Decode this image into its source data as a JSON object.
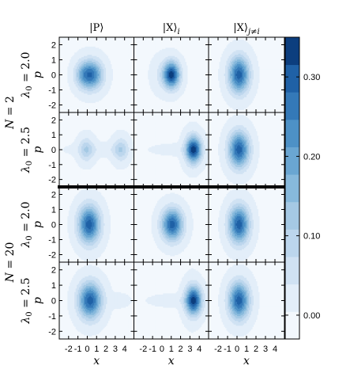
{
  "chart_data": {
    "type": "contour",
    "colormap": "Blues",
    "column_titles": [
      "|P⟩",
      "|X⟩",
      "|X⟩"
    ],
    "column_title_subscripts": [
      "",
      "i",
      "j≠i"
    ],
    "group_labels": [
      {
        "prefix": "N",
        "value": "= 2"
      },
      {
        "prefix": "N",
        "value": "= 20"
      }
    ],
    "row_labels": [
      {
        "prefix": "λ",
        "sub": "0",
        "value": " = 2.0"
      },
      {
        "prefix": "λ",
        "sub": "0",
        "value": " = 2.5"
      },
      {
        "prefix": "λ",
        "sub": "0",
        "value": " = 2.0"
      },
      {
        "prefix": "λ",
        "sub": "0",
        "value": " = 2.5"
      }
    ],
    "xlabel": "x",
    "ylabel": "p",
    "xlim": [
      -3,
      5
    ],
    "ylim": [
      -2.5,
      2.5
    ],
    "xticks": [
      -2,
      -1,
      0,
      1,
      2,
      3,
      4
    ],
    "yticks": [
      -2,
      -1,
      0,
      1,
      2
    ],
    "colorbar": {
      "vmin": -0.03,
      "vmax": 0.35,
      "levels": 11,
      "ticks": [
        0.0,
        0.1,
        0.2,
        0.3
      ],
      "tick_labels": [
        "0.00",
        "0.10",
        "0.20",
        "0.30"
      ]
    },
    "panels": [
      {
        "row": 0,
        "col": 0,
        "blobs": [
          {
            "x": 0,
            "p": 0,
            "sx": 0.75,
            "sp": 0.65,
            "a": 0.21
          },
          {
            "x": 0.9,
            "p": 0,
            "sx": 0.7,
            "sp": 0.65,
            "a": 0.13
          },
          {
            "x": -0.7,
            "p": 0,
            "sx": 0.55,
            "sp": 0.55,
            "a": 0.04
          }
        ]
      },
      {
        "row": 0,
        "col": 1,
        "blobs": [
          {
            "x": 1.05,
            "p": 0,
            "sx": 0.6,
            "sp": 0.6,
            "a": 0.32
          },
          {
            "x": 0.1,
            "p": 0,
            "sx": 0.75,
            "sp": 0.75,
            "a": 0.04
          }
        ]
      },
      {
        "row": 0,
        "col": 2,
        "blobs": [
          {
            "x": 0.2,
            "p": 0,
            "sx": 0.75,
            "sp": 0.82,
            "a": 0.3
          }
        ]
      },
      {
        "row": 1,
        "col": 0,
        "blobs": [
          {
            "x": -0.1,
            "p": 0,
            "sx": 0.55,
            "sp": 0.55,
            "a": 0.1
          },
          {
            "x": 3.6,
            "p": 0,
            "sx": 0.55,
            "sp": 0.55,
            "a": 0.1
          },
          {
            "x": 1.6,
            "p": 0,
            "sx": 2.3,
            "sp": 0.28,
            "a": 0.025
          }
        ]
      },
      {
        "row": 1,
        "col": 1,
        "blobs": [
          {
            "x": 3.4,
            "p": 0,
            "sx": 0.58,
            "sp": 0.6,
            "a": 0.31
          },
          {
            "x": 1.6,
            "p": 0,
            "sx": 1.8,
            "sp": 0.25,
            "a": 0.02
          },
          {
            "x": 3.2,
            "p": 0,
            "sx": 0.55,
            "sp": 0.9,
            "a": 0.025
          }
        ]
      },
      {
        "row": 1,
        "col": 2,
        "blobs": [
          {
            "x": 0.2,
            "p": 0,
            "sx": 0.75,
            "sp": 0.82,
            "a": 0.3
          }
        ]
      },
      {
        "row": 2,
        "col": 0,
        "blobs": [
          {
            "x": 0.2,
            "p": 0,
            "sx": 0.8,
            "sp": 0.85,
            "a": 0.3
          }
        ]
      },
      {
        "row": 2,
        "col": 1,
        "blobs": [
          {
            "x": 1.1,
            "p": 0,
            "sx": 0.78,
            "sp": 0.72,
            "a": 0.3
          }
        ]
      },
      {
        "row": 2,
        "col": 2,
        "blobs": [
          {
            "x": 0.2,
            "p": 0,
            "sx": 0.75,
            "sp": 0.85,
            "a": 0.3
          }
        ]
      },
      {
        "row": 3,
        "col": 0,
        "blobs": [
          {
            "x": 0.3,
            "p": 0,
            "sx": 0.85,
            "sp": 0.8,
            "a": 0.3
          },
          {
            "x": 3.3,
            "p": 0,
            "sx": 0.8,
            "sp": 0.28,
            "a": 0.025
          }
        ]
      },
      {
        "row": 3,
        "col": 1,
        "blobs": [
          {
            "x": 3.4,
            "p": 0,
            "sx": 0.6,
            "sp": 0.62,
            "a": 0.31
          },
          {
            "x": 1.2,
            "p": 0,
            "sx": 1.6,
            "sp": 0.25,
            "a": 0.025
          },
          {
            "x": 3.2,
            "p": 0,
            "sx": 0.55,
            "sp": 1.0,
            "a": 0.03
          }
        ]
      },
      {
        "row": 3,
        "col": 2,
        "blobs": [
          {
            "x": 0.2,
            "p": 0,
            "sx": 0.75,
            "sp": 0.82,
            "a": 0.3
          }
        ]
      }
    ]
  }
}
